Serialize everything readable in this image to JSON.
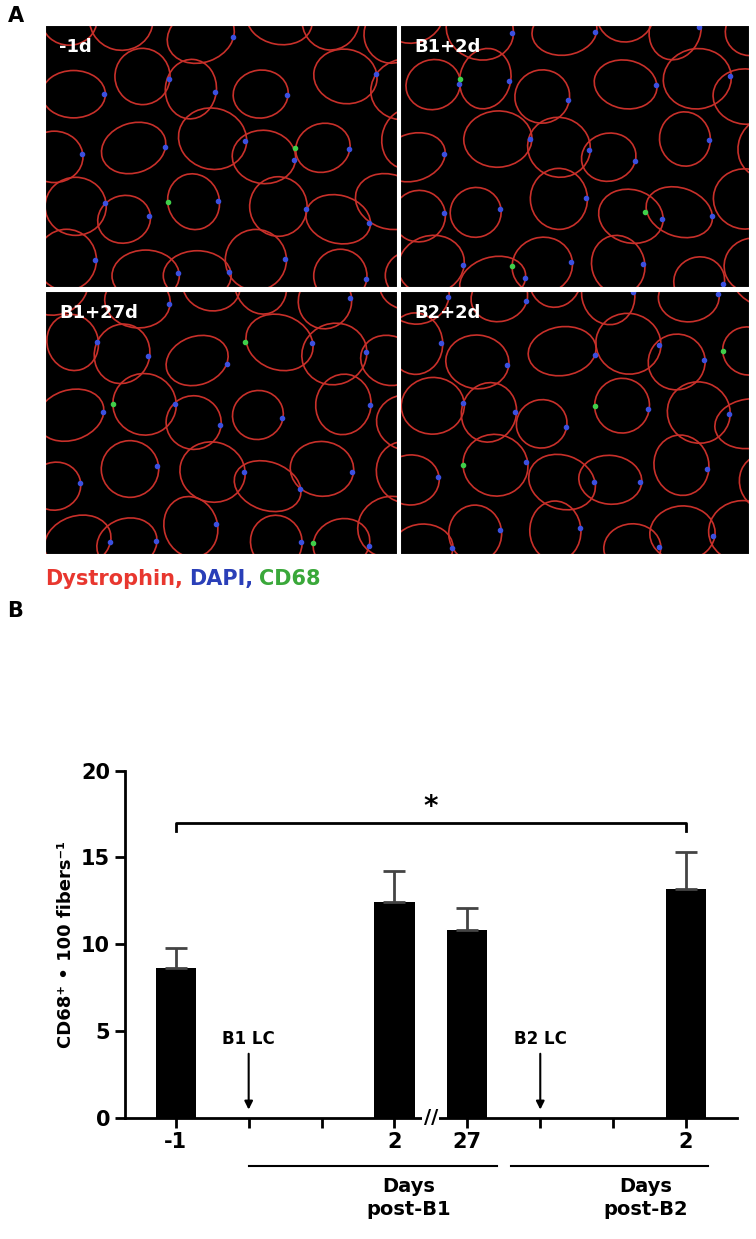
{
  "panel_labels": [
    "A",
    "B"
  ],
  "images": [
    {
      "label": "-1d"
    },
    {
      "label": "B1+2d"
    },
    {
      "label": "B1+27d"
    },
    {
      "label": "B2+2d"
    }
  ],
  "stain_legend": [
    {
      "text": "Dystrophin,",
      "color": "#e8372f"
    },
    {
      "text": "DAPI,",
      "color": "#2a3fb8"
    },
    {
      "text": "CD68",
      "color": "#3aa83a"
    }
  ],
  "chart_data": {
    "type": "bar",
    "y_label": "CD68⁺ • 100 fibers⁻¹",
    "categories": [
      "-1",
      null,
      null,
      "2",
      "27",
      null,
      null,
      "2"
    ],
    "values": [
      8.6,
      null,
      null,
      12.4,
      10.8,
      null,
      null,
      13.2
    ],
    "errors": [
      1.2,
      null,
      null,
      1.8,
      1.3,
      null,
      null,
      2.1
    ],
    "color": "#000000",
    "ylim": [
      0,
      20
    ],
    "yticks": [
      0,
      5,
      10,
      15,
      20
    ],
    "annotations": [
      "B1 LC",
      "B2 LC"
    ],
    "significance": "*",
    "axis_break": "//",
    "groups": [
      "Days\npost-B1",
      "Days\npost-B2"
    ]
  }
}
